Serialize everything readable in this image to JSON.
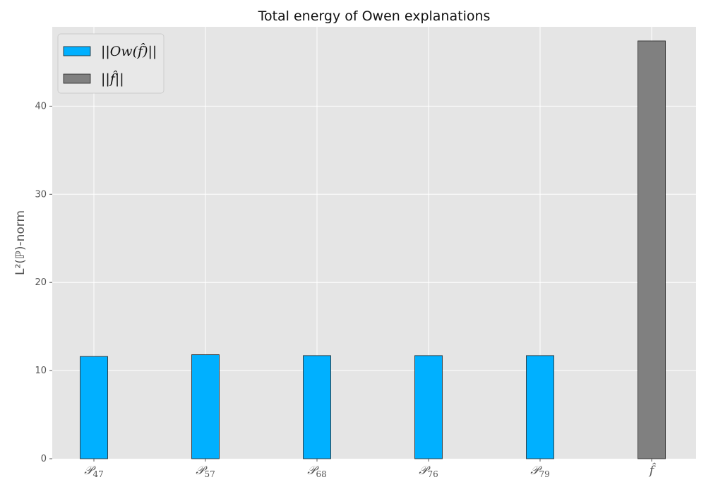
{
  "chart_data": {
    "type": "bar",
    "title": "Total energy of Owen explanations",
    "xlabel": "",
    "ylabel": "L²(ℙ)-norm",
    "categories": [
      "𝒫47",
      "𝒫57",
      "𝒫68",
      "𝒫76",
      "𝒫79",
      "f̂"
    ],
    "category_labels": [
      {
        "main": "𝒫",
        "sub": "47"
      },
      {
        "main": "𝒫",
        "sub": "57"
      },
      {
        "main": "𝒫",
        "sub": "68"
      },
      {
        "main": "𝒫",
        "sub": "76"
      },
      {
        "main": "𝒫",
        "sub": "79"
      },
      {
        "main": "f̂",
        "sub": ""
      }
    ],
    "series": [
      {
        "name": "||Ow(f̂)||",
        "color": "#00b0ff",
        "values": [
          11.6,
          11.8,
          11.7,
          11.7,
          11.7,
          null
        ]
      },
      {
        "name": "||f̂||",
        "color": "#808080",
        "values": [
          null,
          null,
          null,
          null,
          null,
          47.4
        ]
      }
    ],
    "ylim": [
      0,
      49
    ],
    "yticks": [
      0,
      10,
      20,
      30,
      40
    ],
    "grid": true,
    "legend_position": "top-left",
    "colors": {
      "background": "#e5e5e5",
      "grid": "#ffffff",
      "bar_edge": "#222222"
    }
  }
}
